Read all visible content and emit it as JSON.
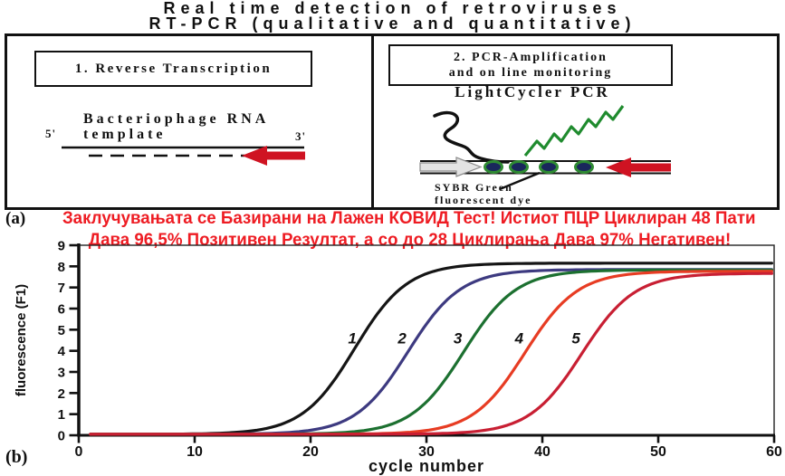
{
  "title": {
    "line1": "Real time detection of retroviruses",
    "line2": "RT-PCR (qualitative and quantitative)"
  },
  "panel_a": {
    "label": "(a)",
    "left": {
      "header": "1. Reverse Transcription",
      "template_line1": "Bacteriophage RNA",
      "template_line2": "template",
      "five_prime": "5'",
      "three_prime": "3'"
    },
    "right": {
      "header_line1": "2. PCR-Amplification",
      "header_line2": "and on line monitoring",
      "subtitle": "LightCycler PCR",
      "dye_line1": "SYBR Green",
      "dye_line2": "fluorescent dye"
    },
    "caption": {
      "color": "#ee1c23",
      "line1": "Заклучувањата се Базирани на Лажен КОВИД Тест! Истиот ПЦР Циклиран 48 Пати",
      "line2": "Дава 96,5% Позитивен Резултат, а со до 28 Циклирања Дава 97% Негативен!"
    }
  },
  "panel_b": {
    "label": "(b)"
  },
  "chart_data": {
    "type": "line",
    "title": "",
    "xlabel": "cycle number",
    "ylabel": "fluorescence (F1)",
    "xlim": [
      0,
      60
    ],
    "ylim": [
      0,
      9
    ],
    "x_ticks": [
      0,
      10,
      20,
      30,
      40,
      50,
      60
    ],
    "y_ticks": [
      0,
      1,
      2,
      3,
      4,
      5,
      6,
      7,
      8,
      9
    ],
    "grid": false,
    "legend": "numeric labels next to each curve",
    "curve_model": "y = baseline + plateau / (1 + exp(-k*(x - midpoint)))",
    "baseline": 0.05,
    "series": [
      {
        "label": "1",
        "color": "#151515",
        "midpoint": 23.8,
        "plateau": 8.1,
        "k": 0.44,
        "label_x": 23.6,
        "label_y": 4.35,
        "approx_points": {
          "x": [
            10,
            20,
            30,
            40,
            50,
            60
          ],
          "y": [
            0.1,
            1.4,
            7.6,
            8.1,
            8.1,
            8.1
          ]
        }
      },
      {
        "label": "2",
        "color": "#3d3a80",
        "midpoint": 28.4,
        "plateau": 7.8,
        "k": 0.44,
        "label_x": 27.9,
        "label_y": 4.35,
        "approx_points": {
          "x": [
            10,
            20,
            30,
            40,
            50,
            60
          ],
          "y": [
            0.1,
            0.25,
            5.2,
            7.75,
            7.8,
            7.8
          ]
        }
      },
      {
        "label": "3",
        "color": "#1c7030",
        "midpoint": 33.2,
        "plateau": 7.78,
        "k": 0.44,
        "label_x": 32.7,
        "label_y": 4.35,
        "approx_points": {
          "x": [
            10,
            20,
            30,
            40,
            50,
            60
          ],
          "y": [
            0.05,
            0.1,
            1.5,
            7.4,
            7.75,
            7.8
          ]
        }
      },
      {
        "label": "4",
        "color": "#e73c23",
        "midpoint": 38.5,
        "plateau": 7.72,
        "k": 0.44,
        "label_x": 38.0,
        "label_y": 4.35,
        "approx_points": {
          "x": [
            10,
            20,
            30,
            40,
            50,
            60
          ],
          "y": [
            0.05,
            0.1,
            0.25,
            5.1,
            7.65,
            7.7
          ]
        }
      },
      {
        "label": "5",
        "color": "#c81f33",
        "midpoint": 43.4,
        "plateau": 7.62,
        "k": 0.44,
        "label_x": 42.9,
        "label_y": 4.35,
        "approx_points": {
          "x": [
            10,
            20,
            30,
            40,
            50,
            60
          ],
          "y": [
            0.05,
            0.05,
            0.1,
            1.4,
            7.2,
            7.6
          ]
        }
      }
    ]
  }
}
